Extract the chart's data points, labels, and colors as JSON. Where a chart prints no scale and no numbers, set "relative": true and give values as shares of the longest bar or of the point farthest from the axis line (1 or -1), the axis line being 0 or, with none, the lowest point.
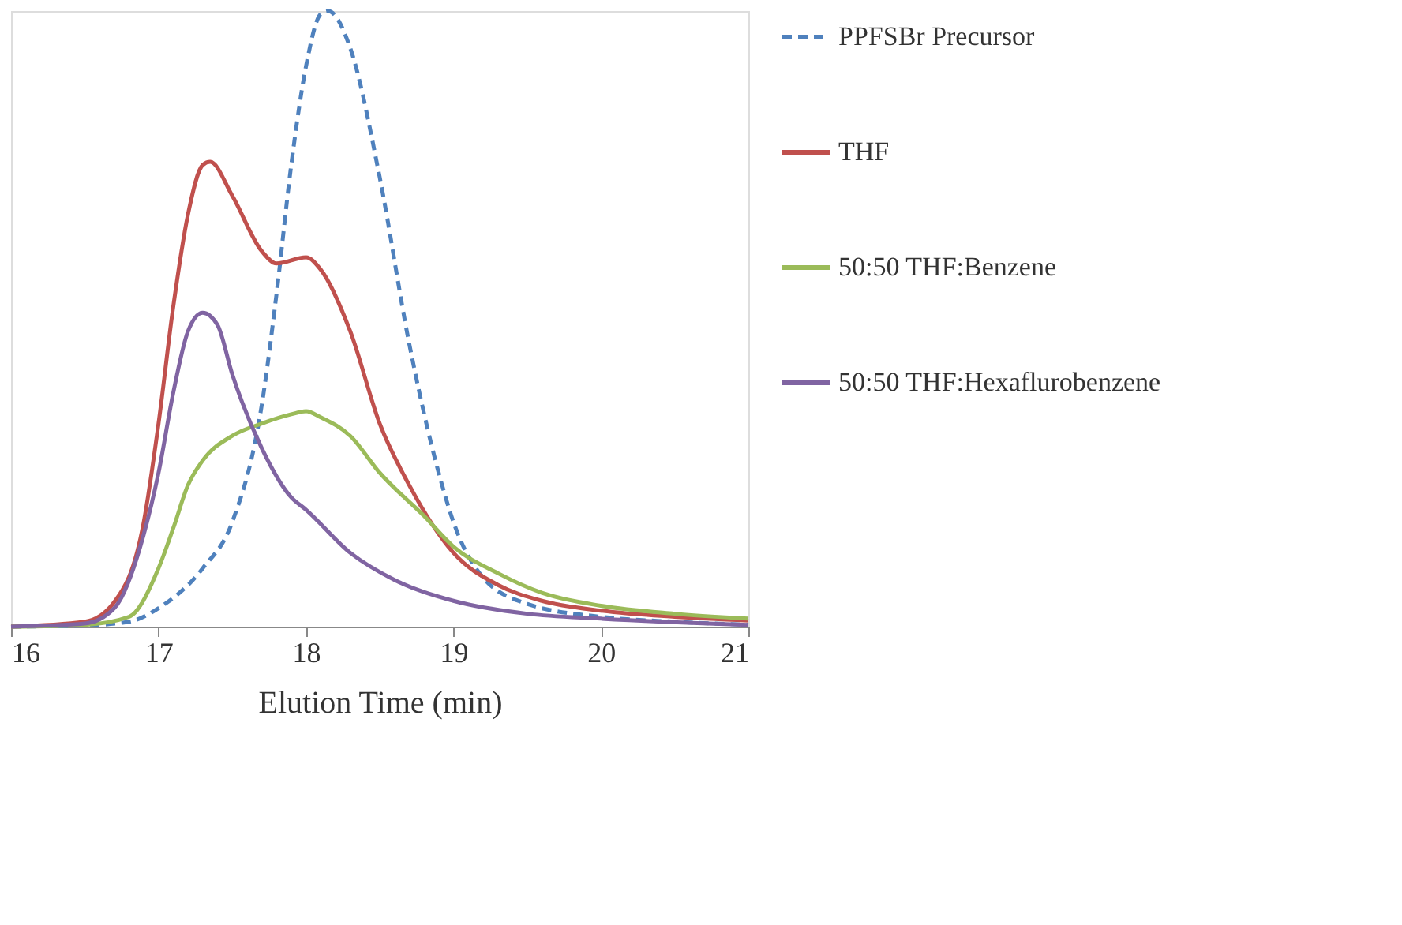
{
  "chart_data": {
    "type": "line",
    "xlabel": "Elution Time (min)",
    "relative": true,
    "xlim": [
      16,
      21
    ],
    "xticks": [
      16,
      17,
      18,
      19,
      20,
      21
    ],
    "grid": false,
    "legend": "right",
    "marker": "none",
    "series": [
      {
        "name": "PPFSBr Precursor",
        "color": "#4f81bd",
        "line_style": "dashed",
        "x": [
          16,
          16.5,
          16.8,
          17.0,
          17.3,
          17.5,
          17.7,
          17.8,
          17.9,
          18.0,
          18.1,
          18.15,
          18.3,
          18.5,
          18.7,
          18.9,
          19.0,
          19.2,
          19.5,
          20,
          20.5,
          21
        ],
        "values": [
          0,
          0.002,
          0.008,
          0.03,
          0.095,
          0.17,
          0.36,
          0.54,
          0.75,
          0.91,
          0.995,
          1.0,
          0.94,
          0.73,
          0.46,
          0.25,
          0.17,
          0.08,
          0.037,
          0.016,
          0.008,
          0.003
        ]
      },
      {
        "name": "THF",
        "color": "#c0504d",
        "line_style": "solid",
        "x": [
          16,
          16.5,
          16.7,
          16.9,
          17.0,
          17.1,
          17.2,
          17.3,
          17.35,
          17.5,
          17.7,
          17.8,
          18.0,
          18.1,
          18.3,
          18.5,
          18.7,
          19.0,
          19.3,
          19.6,
          20,
          20.5,
          21
        ],
        "values": [
          0,
          0.008,
          0.04,
          0.17,
          0.33,
          0.52,
          0.67,
          0.75,
          0.755,
          0.7,
          0.61,
          0.59,
          0.6,
          0.58,
          0.48,
          0.33,
          0.23,
          0.12,
          0.068,
          0.042,
          0.026,
          0.016,
          0.01
        ]
      },
      {
        "name": "50:50 THF:Benzene",
        "color": "#9bbb59",
        "line_style": "solid",
        "x": [
          16,
          16.5,
          16.8,
          17.0,
          17.1,
          17.2,
          17.3,
          17.5,
          17.7,
          17.9,
          18.0,
          18.1,
          18.3,
          18.5,
          18.8,
          19.0,
          19.3,
          19.6,
          20,
          20.5,
          21
        ],
        "values": [
          0,
          0.003,
          0.016,
          0.095,
          0.16,
          0.23,
          0.27,
          0.31,
          0.33,
          0.345,
          0.35,
          0.34,
          0.31,
          0.25,
          0.18,
          0.13,
          0.087,
          0.055,
          0.034,
          0.021,
          0.013
        ]
      },
      {
        "name": "50:50 THF:Hexaflurobenzene",
        "color": "#8064a2",
        "line_style": "solid",
        "x": [
          16,
          16.5,
          16.7,
          16.9,
          17.0,
          17.1,
          17.2,
          17.3,
          17.4,
          17.5,
          17.7,
          17.9,
          18.0,
          18.3,
          18.6,
          19.0,
          19.5,
          20,
          21
        ],
        "values": [
          0,
          0.005,
          0.03,
          0.15,
          0.25,
          0.38,
          0.48,
          0.51,
          0.49,
          0.41,
          0.29,
          0.21,
          0.19,
          0.12,
          0.076,
          0.042,
          0.021,
          0.013,
          0.003
        ]
      }
    ]
  }
}
